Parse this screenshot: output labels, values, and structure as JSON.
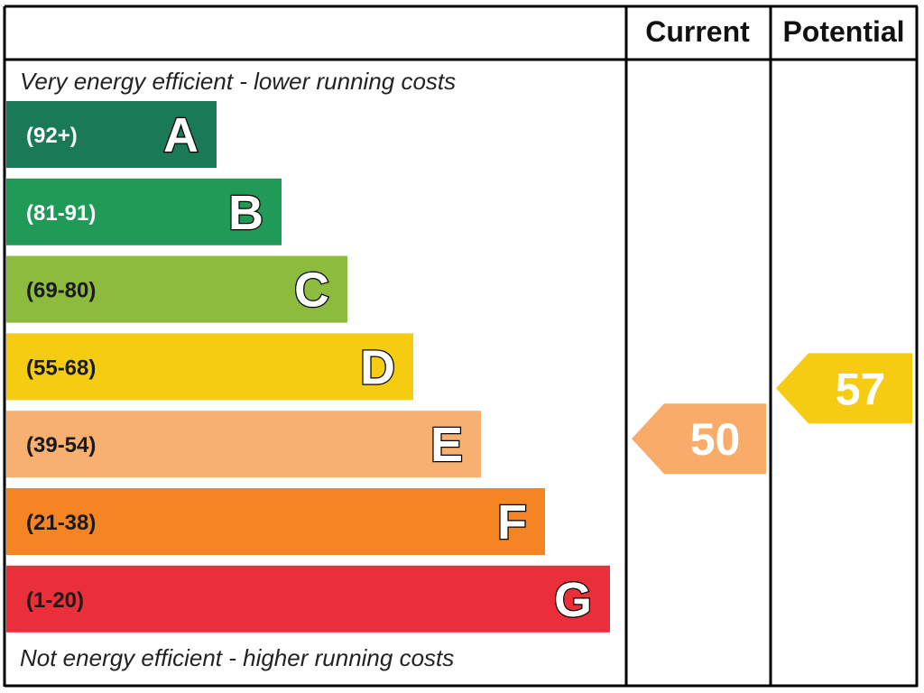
{
  "chart_data": {
    "type": "bar",
    "headers": {
      "current": "Current",
      "potential": "Potential"
    },
    "top_note": "Very energy efficient - lower running costs",
    "bottom_note": "Not energy efficient - higher running costs",
    "bands": [
      {
        "range": "(92+)",
        "letter": "A",
        "color": "#1a7a58",
        "range_color": "#ffffff"
      },
      {
        "range": "(81-91)",
        "letter": "B",
        "color": "#1f9a57",
        "range_color": "#ffffff"
      },
      {
        "range": "(69-80)",
        "letter": "C",
        "color": "#8dbb3e",
        "range_color": "#1a1a1a"
      },
      {
        "range": "(55-68)",
        "letter": "D",
        "color": "#f6cc12",
        "range_color": "#1a1a1a"
      },
      {
        "range": "(39-54)",
        "letter": "E",
        "color": "#f8b070",
        "range_color": "#1a1a1a"
      },
      {
        "range": "(21-38)",
        "letter": "F",
        "color": "#f58422",
        "range_color": "#1a1a1a"
      },
      {
        "range": "(1-20)",
        "letter": "G",
        "color": "#ea2f3b",
        "range_color": "#1a1a1a"
      }
    ],
    "current": {
      "value": 50,
      "band": "E",
      "color": "#f9ab6a"
    },
    "potential": {
      "value": 57,
      "band": "D",
      "color": "#f6cc12"
    }
  }
}
